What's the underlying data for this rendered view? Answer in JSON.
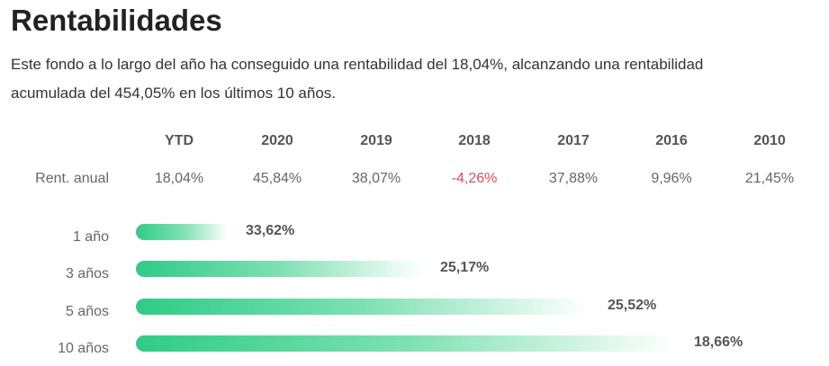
{
  "title": "Rentabilidades",
  "description": "Este fondo a lo largo del año ha conseguido una rentabilidad del 18,04%, alcanzando una rentabilidad acumulada del 454,05% en los últimos 10 años.",
  "table": {
    "row_label": "Rent. anual",
    "columns": [
      "YTD",
      "2020",
      "2019",
      "2018",
      "2017",
      "2016",
      "2010"
    ],
    "values": [
      "18,04%",
      "45,84%",
      "38,07%",
      "-4,26%",
      "37,88%",
      "9,96%",
      "21,45%"
    ]
  },
  "bars": [
    {
      "label": "1 año",
      "value": "33,62%",
      "fill": 0.17
    },
    {
      "label": "3 años",
      "value": "25,17%",
      "fill": 0.53
    },
    {
      "label": "5 años",
      "value": "25,52%",
      "fill": 0.84
    },
    {
      "label": "10 años",
      "value": "18,66%",
      "fill": 1.0
    }
  ],
  "colors": {
    "accent": "#2ecc87",
    "negative": "#e0485a"
  }
}
